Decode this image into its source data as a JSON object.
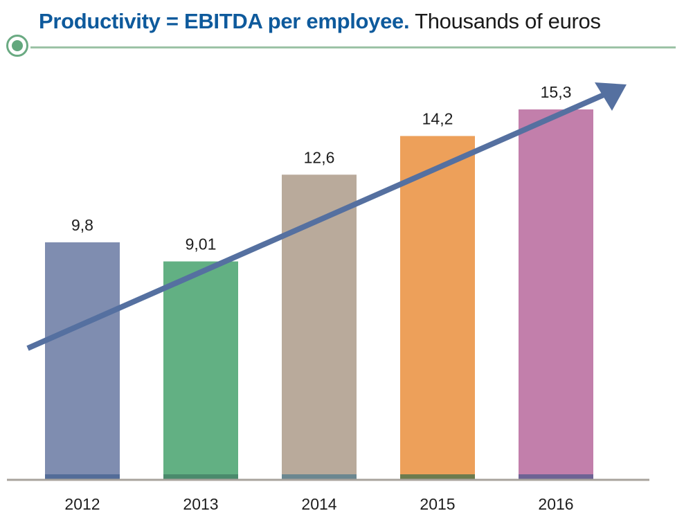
{
  "header": {
    "title_bold": "Productivity = EBITDA per employee.",
    "title_regular": "Thousands of euros",
    "title_color": "#0e5a9c",
    "rule_color": "#9cc3a6",
    "marker_color": "#62a77d"
  },
  "chart_data": {
    "type": "bar",
    "title": "Productivity = EBITDA per employee. Thousands of euros",
    "xlabel": "",
    "ylabel": "",
    "categories": [
      "2012",
      "2013",
      "2014",
      "2015",
      "2016"
    ],
    "values": [
      9.8,
      9.01,
      12.6,
      14.2,
      15.3
    ],
    "value_labels": [
      "9,8",
      "9,01",
      "12,6",
      "14,2",
      "15,3"
    ],
    "bar_colors": [
      "#7f8db0",
      "#62b083",
      "#b9aa9b",
      "#eda05a",
      "#c27fab"
    ],
    "bar_base_colors": [
      "#536c98",
      "#4a8a6c",
      "#6b8790",
      "#6c7b4e",
      "#6d6394"
    ],
    "ylim": [
      0,
      15.5
    ],
    "grid": false,
    "legend": "none",
    "annotations": [
      {
        "type": "trend-arrow",
        "direction": "upward",
        "color": "#5570a0"
      }
    ],
    "axis_color": "#a8a39c"
  }
}
